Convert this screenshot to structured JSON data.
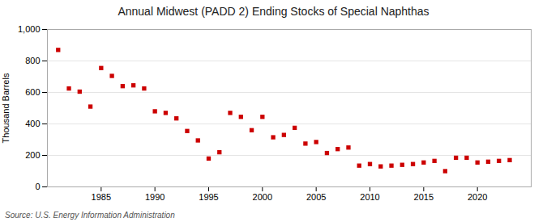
{
  "chart_data": {
    "type": "scatter",
    "title": "Annual Midwest (PADD 2) Ending Stocks of Special Naphthas",
    "ylabel": "Thousand Barrels",
    "source": "Source: U.S. Energy Information Administration",
    "x": [
      1981,
      1982,
      1983,
      1984,
      1985,
      1986,
      1987,
      1988,
      1989,
      1990,
      1991,
      1992,
      1993,
      1994,
      1995,
      1996,
      1997,
      1998,
      1999,
      2000,
      2001,
      2002,
      2003,
      2004,
      2005,
      2006,
      2007,
      2008,
      2009,
      2010,
      2011,
      2012,
      2013,
      2014,
      2015,
      2016,
      2017,
      2018,
      2019,
      2020,
      2021,
      2022,
      2023
    ],
    "values": [
      870,
      625,
      605,
      510,
      755,
      705,
      640,
      645,
      625,
      480,
      470,
      435,
      355,
      295,
      180,
      220,
      470,
      445,
      360,
      445,
      315,
      330,
      375,
      275,
      285,
      215,
      240,
      250,
      135,
      145,
      130,
      135,
      140,
      145,
      155,
      165,
      100,
      185,
      185,
      155,
      160,
      165,
      170
    ],
    "color": "#cc0000",
    "marker": "square",
    "xlim": [
      1980,
      2025
    ],
    "xticks": [
      1985,
      1990,
      1995,
      2000,
      2005,
      2010,
      2015,
      2020
    ],
    "ylim": [
      0,
      1000
    ],
    "yticks": [
      0,
      200,
      400,
      600,
      800,
      {
        "value": 1000,
        "label": "1,000"
      }
    ],
    "grid": "y"
  }
}
